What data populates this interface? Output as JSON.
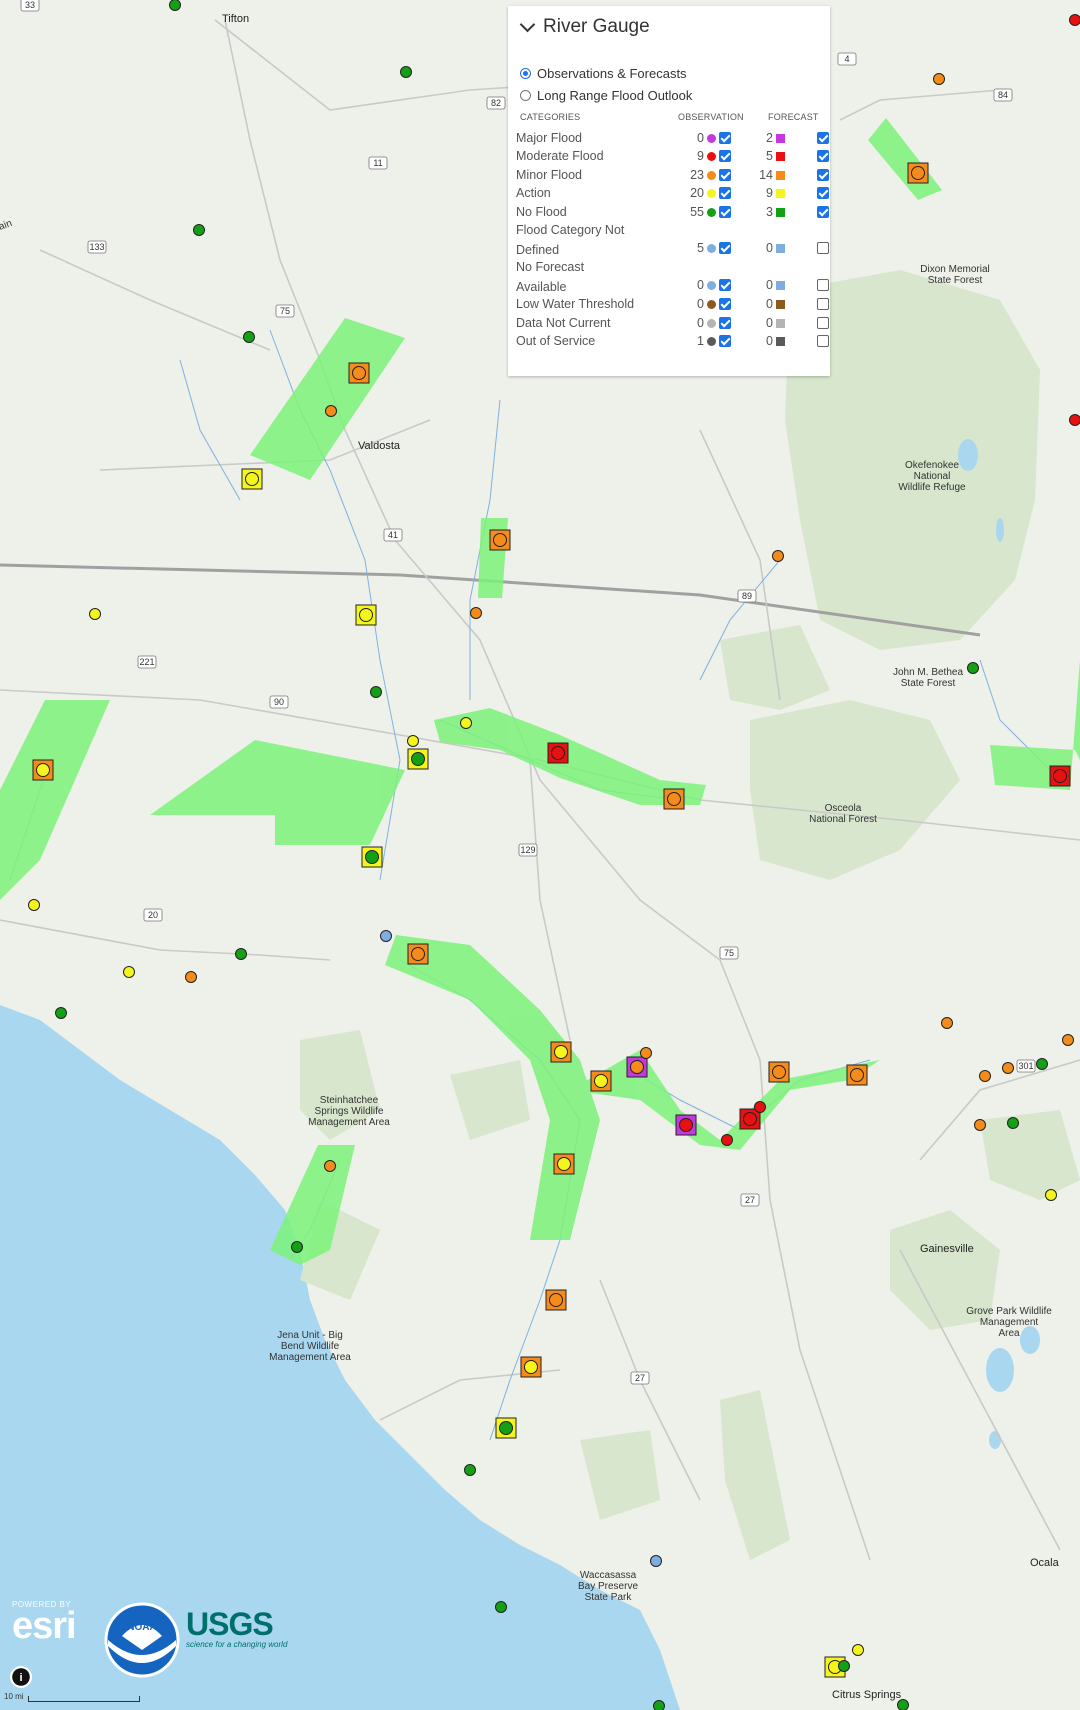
{
  "legend": {
    "title": "River Gauge",
    "view_options": [
      {
        "label": "Observations & Forecasts",
        "selected": true
      },
      {
        "label": "Long Range Flood Outlook",
        "selected": false
      }
    ],
    "columns": {
      "categories": "CATEGORIES",
      "observation": "OBSERVATION",
      "forecast": "FORECAST"
    },
    "rows": [
      {
        "label": "Major Flood",
        "obs": "0",
        "fc": "2",
        "color": "#c438e0",
        "obs_on": true,
        "fc_on": true
      },
      {
        "label": "Moderate Flood",
        "obs": "9",
        "fc": "5",
        "color": "#e81010",
        "obs_on": true,
        "fc_on": true
      },
      {
        "label": "Minor Flood",
        "obs": "23",
        "fc": "14",
        "color": "#f58b1a",
        "obs_on": true,
        "fc_on": true
      },
      {
        "label": "Action",
        "obs": "20",
        "fc": "9",
        "color": "#f5f51e",
        "obs_on": true,
        "fc_on": true
      },
      {
        "label": "No Flood",
        "obs": "55",
        "fc": "3",
        "color": "#14a014",
        "obs_on": true,
        "fc_on": true
      },
      {
        "label": "Flood Category Not Defined",
        "obs": "5",
        "fc": "0",
        "color": "#7eaee0",
        "obs_on": true,
        "fc_on": false
      },
      {
        "label": "No Forecast Available",
        "obs": "0",
        "fc": "0",
        "color": "#7eaee0",
        "obs_on": true,
        "fc_on": false
      },
      {
        "label": "Low Water Threshold",
        "obs": "0",
        "fc": "0",
        "color": "#8b5a20",
        "obs_on": true,
        "fc_on": false
      },
      {
        "label": "Data Not Current",
        "obs": "0",
        "fc": "0",
        "color": "#b4b4b4",
        "obs_on": true,
        "fc_on": false
      },
      {
        "label": "Out of Service",
        "obs": "1",
        "fc": "0",
        "color": "#5a5a5a",
        "obs_on": true,
        "fc_on": false
      }
    ]
  },
  "map": {
    "places": [
      {
        "id": "tifton",
        "label": "Tifton"
      },
      {
        "id": "valdosta",
        "label": "Valdosta"
      },
      {
        "id": "gainesville",
        "label": "Gainesville"
      },
      {
        "id": "ocala",
        "label": "Ocala"
      },
      {
        "id": "citrus",
        "label": "Citrus Springs"
      },
      {
        "id": "dixon",
        "label": "Dixon Memorial\nState Forest"
      },
      {
        "id": "okef",
        "label": "Okefenokee\nNational\nWildlife Refuge"
      },
      {
        "id": "bethea",
        "label": "John M. Bethea\nState Forest"
      },
      {
        "id": "osceola",
        "label": "Osceola\nNational Forest"
      },
      {
        "id": "steinh",
        "label": "Steinhatchee\nSprings Wildlife\nManagement Area"
      },
      {
        "id": "jena",
        "label": "Jena Unit - Big\nBend Wildlife\nManagement Area"
      },
      {
        "id": "grove",
        "label": "Grove Park Wildlife\nManagement\nArea"
      },
      {
        "id": "wacc",
        "label": "Waccasassa\nBay Preserve\nState Park"
      },
      {
        "id": "ain",
        "label": "ain"
      }
    ],
    "routes": [
      "33",
      "82",
      "11",
      "133",
      "75",
      "41",
      "89",
      "221",
      "90",
      "129",
      "20",
      "75",
      "27",
      "27",
      "301",
      "4",
      "84"
    ],
    "gauges": [
      {
        "cat": "no-flood",
        "fc": null,
        "ref": "stn-1"
      },
      {
        "cat": "no-flood",
        "fc": null,
        "ref": "stn-2"
      },
      {
        "cat": "minor",
        "fc": null,
        "ref": "stn-3"
      },
      {
        "cat": "moderate",
        "fc": null,
        "ref": "stn-4"
      },
      {
        "cat": "minor",
        "fc": "minor",
        "ref": "stn-5"
      },
      {
        "cat": "no-flood",
        "fc": null,
        "ref": "stn-6"
      },
      {
        "cat": "no-flood",
        "fc": null,
        "ref": "stn-7"
      },
      {
        "cat": "minor",
        "fc": "minor",
        "ref": "stn-8"
      },
      {
        "cat": "minor",
        "fc": null,
        "ref": "stn-9"
      },
      {
        "cat": "action",
        "fc": "action",
        "ref": "stn-10"
      },
      {
        "cat": "minor",
        "fc": "minor",
        "ref": "stn-11"
      },
      {
        "cat": "minor",
        "fc": null,
        "ref": "stn-12"
      },
      {
        "cat": "action",
        "fc": "action",
        "ref": "stn-13"
      },
      {
        "cat": "action",
        "fc": null,
        "ref": "stn-14"
      },
      {
        "cat": "minor",
        "fc": null,
        "ref": "stn-15"
      },
      {
        "cat": "no-flood",
        "fc": null,
        "ref": "stn-16"
      },
      {
        "cat": "no-flood",
        "fc": null,
        "ref": "stn-17"
      },
      {
        "cat": "action",
        "fc": null,
        "ref": "stn-18"
      },
      {
        "cat": "action",
        "fc": null,
        "ref": "stn-19"
      },
      {
        "cat": "no-flood",
        "fc": "action",
        "ref": "stn-20"
      },
      {
        "cat": "moderate",
        "fc": "moderate",
        "ref": "stn-21"
      },
      {
        "cat": "minor",
        "fc": "minor",
        "ref": "stn-22"
      },
      {
        "cat": "action",
        "fc": "minor",
        "ref": "stn-23"
      },
      {
        "cat": "moderate",
        "fc": "moderate",
        "ref": "stn-24"
      },
      {
        "cat": "no-flood",
        "fc": "action",
        "ref": "stn-25"
      },
      {
        "cat": "action",
        "fc": null,
        "ref": "stn-26"
      },
      {
        "cat": "unknown",
        "fc": null,
        "ref": "stn-27"
      },
      {
        "cat": "minor",
        "fc": "minor",
        "ref": "stn-28"
      },
      {
        "cat": "action",
        "fc": null,
        "ref": "stn-29"
      },
      {
        "cat": "minor",
        "fc": null,
        "ref": "stn-30"
      },
      {
        "cat": "no-flood",
        "fc": null,
        "ref": "stn-31"
      },
      {
        "cat": "no-flood",
        "fc": null,
        "ref": "stn-32"
      },
      {
        "cat": "action",
        "fc": "minor",
        "ref": "stn-33"
      },
      {
        "cat": "action",
        "fc": "minor",
        "ref": "stn-34"
      },
      {
        "cat": "minor",
        "fc": "major",
        "ref": "stn-35"
      },
      {
        "cat": "minor",
        "fc": null,
        "ref": "stn-36"
      },
      {
        "cat": "moderate",
        "fc": "major",
        "ref": "stn-37"
      },
      {
        "cat": "moderate",
        "fc": null,
        "ref": "stn-38"
      },
      {
        "cat": "moderate",
        "fc": "moderate",
        "ref": "stn-39"
      },
      {
        "cat": "moderate",
        "fc": null,
        "ref": "stn-40"
      },
      {
        "cat": "minor",
        "fc": "minor",
        "ref": "stn-41"
      },
      {
        "cat": "minor",
        "fc": "minor",
        "ref": "stn-42"
      },
      {
        "cat": "minor",
        "fc": null,
        "ref": "stn-43"
      },
      {
        "cat": "minor",
        "fc": null,
        "ref": "stn-44"
      },
      {
        "cat": "minor",
        "fc": null,
        "ref": "stn-45"
      },
      {
        "cat": "no-flood",
        "fc": null,
        "ref": "stn-46"
      },
      {
        "cat": "minor",
        "fc": null,
        "ref": "stn-47"
      },
      {
        "cat": "no-flood",
        "fc": null,
        "ref": "stn-48"
      },
      {
        "cat": "action",
        "fc": null,
        "ref": "stn-49"
      },
      {
        "cat": "action",
        "fc": "minor",
        "ref": "stn-50"
      },
      {
        "cat": "minor",
        "fc": null,
        "ref": "stn-51"
      },
      {
        "cat": "no-flood",
        "fc": null,
        "ref": "stn-52"
      },
      {
        "cat": "minor",
        "fc": "minor",
        "ref": "stn-53"
      },
      {
        "cat": "action",
        "fc": "minor",
        "ref": "stn-54"
      },
      {
        "cat": "no-flood",
        "fc": "action",
        "ref": "stn-55"
      },
      {
        "cat": "no-flood",
        "fc": null,
        "ref": "stn-56"
      },
      {
        "cat": "unknown",
        "fc": null,
        "ref": "stn-57"
      },
      {
        "cat": "no-flood",
        "fc": null,
        "ref": "stn-58"
      },
      {
        "cat": "action",
        "fc": "action",
        "ref": "stn-59"
      },
      {
        "cat": "action",
        "fc": null,
        "ref": "stn-60"
      },
      {
        "cat": "no-flood",
        "fc": null,
        "ref": "stn-61"
      },
      {
        "cat": "no-flood",
        "fc": null,
        "ref": "stn-62"
      },
      {
        "cat": "moderate",
        "fc": null,
        "ref": "stn-63"
      },
      {
        "cat": "no-flood",
        "fc": null,
        "ref": "stn-64"
      },
      {
        "cat": "moderate",
        "fc": "moderate",
        "ref": "stn-65"
      },
      {
        "cat": "minor",
        "fc": null,
        "ref": "stn-66"
      }
    ]
  },
  "logos": {
    "esri_powered": "POWERED BY",
    "esri": "esri",
    "noaa": "NOAA",
    "usgs": "USGS",
    "usgs_tagline": "science for a changing world"
  },
  "scale_label": "10 mi",
  "info_glyph": "i",
  "colors": {
    "water": "#a9d7ef",
    "land": "#eef0ea",
    "forest": "#d7e6cc",
    "flood_zone": "#7df27a",
    "river": "#6fa8dc",
    "road": "#c9c9c9",
    "state_line": "#a0a0a0"
  }
}
